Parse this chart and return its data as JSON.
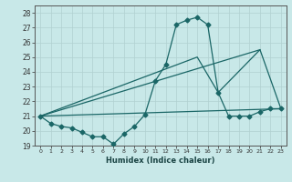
{
  "xlabel": "Humidex (Indice chaleur)",
  "ylabel": "",
  "xlim": [
    -0.5,
    23.5
  ],
  "ylim": [
    19,
    28.5
  ],
  "yticks": [
    19,
    20,
    21,
    22,
    23,
    24,
    25,
    26,
    27,
    28
  ],
  "xticks": [
    0,
    1,
    2,
    3,
    4,
    5,
    6,
    7,
    8,
    9,
    10,
    11,
    12,
    13,
    14,
    15,
    16,
    17,
    18,
    19,
    20,
    21,
    22,
    23
  ],
  "bg_color": "#c8e8e8",
  "line_color": "#1a6666",
  "grid_color": "#b0d0d0",
  "lines": [
    {
      "x": [
        0,
        1,
        2,
        3,
        4,
        5,
        6,
        7,
        8,
        9,
        10,
        11,
        12,
        13,
        14,
        15,
        16,
        17,
        18,
        19,
        20,
        21,
        22,
        23
      ],
      "y": [
        21.0,
        20.5,
        20.3,
        20.2,
        19.9,
        19.6,
        19.6,
        19.1,
        19.8,
        20.3,
        21.1,
        23.4,
        24.5,
        27.2,
        27.5,
        27.7,
        27.2,
        22.6,
        21.0,
        21.0,
        21.0,
        21.3,
        21.5,
        21.5
      ],
      "marker": "D",
      "markersize": 2.5,
      "linewidth": 0.9
    },
    {
      "x": [
        0,
        21
      ],
      "y": [
        21.0,
        25.5
      ],
      "marker": null,
      "markersize": 0,
      "linewidth": 0.9
    },
    {
      "x": [
        0,
        23
      ],
      "y": [
        21.0,
        21.5
      ],
      "marker": null,
      "markersize": 0,
      "linewidth": 0.9
    },
    {
      "x": [
        0,
        15,
        17,
        21,
        23
      ],
      "y": [
        21.0,
        25.0,
        22.6,
        25.5,
        21.5
      ],
      "marker": null,
      "markersize": 0,
      "linewidth": 0.9
    }
  ]
}
